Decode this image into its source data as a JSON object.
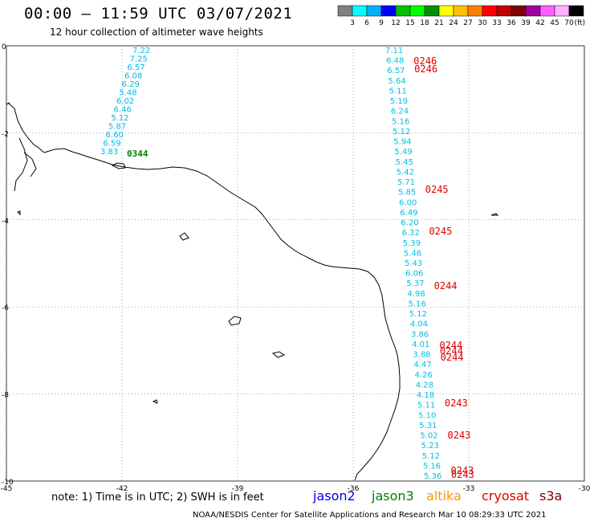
{
  "header": {
    "title": "00:00 – 11:59 UTC 03/07/2021",
    "subtitle": "12 hour collection of altimeter wave heights"
  },
  "colorbar": {
    "colors": [
      "#808080",
      "#00ffff",
      "#00b0ff",
      "#0000ff",
      "#00c000",
      "#00ff00",
      "#009000",
      "#ffff00",
      "#ffc000",
      "#ff8000",
      "#ff0000",
      "#c00000",
      "#800000",
      "#a000a0",
      "#ff60ff",
      "#ffb0ff",
      "#000000"
    ],
    "labels": [
      "3",
      "6",
      "9",
      "12",
      "15",
      "18",
      "21",
      "24",
      "27",
      "30",
      "33",
      "36",
      "39",
      "42",
      "45",
      "70"
    ],
    "unit": "(ft)"
  },
  "axes": {
    "lon_labels": [
      "-45",
      "-42",
      "-39",
      "-36",
      "-33",
      "-30"
    ],
    "lat_labels": [
      "0",
      "-2",
      "-4",
      "-6",
      "-8",
      "-10"
    ],
    "lon_range": [
      -45,
      -30
    ],
    "lat_range": [
      -10,
      0
    ],
    "grid": "dotted"
  },
  "track1": {
    "color": "#00b8e8",
    "values": [
      "7.22",
      "7.25",
      "6.57",
      "6.08",
      "6.29",
      "5.48",
      "6.02",
      "6.46",
      "5.12",
      "5.87",
      "6.60",
      "6.59",
      "3.83"
    ],
    "time_label": "0344",
    "time_color": "#008000"
  },
  "track2": {
    "color": "#00c0e0",
    "values": [
      "7.11",
      "6.48",
      "6.57",
      "5.64",
      "5.11",
      "5.19",
      "6.24",
      "5.16",
      "5.12",
      "5.94",
      "5.49",
      "5.45",
      "5.42",
      "5.71",
      "5.85",
      "6.00",
      "6.49",
      "6.20",
      "6.32",
      "5.39",
      "5.46",
      "5.43",
      "6.06",
      "5.37",
      "4.98",
      "5.16",
      "5.12",
      "4.04",
      "3.86",
      "4.01",
      "3.88",
      "4.47",
      "4.26",
      "4.28",
      "4.18",
      "5.11",
      "5.10",
      "5.31",
      "5.02",
      "5.23",
      "5.12",
      "5.16",
      "5.36"
    ],
    "time_labels": [
      "0246",
      "0246",
      "0245",
      "0245",
      "0244",
      "0244",
      "0244",
      "0244",
      "0243",
      "0243",
      "0243",
      "0243"
    ],
    "time_color": "#e00000"
  },
  "note": "note: 1) Time is in UTC; 2) SWH is in feet",
  "missions": [
    {
      "name": "jason2",
      "color": "#0000e0"
    },
    {
      "name": "jason3",
      "color": "#008000"
    },
    {
      "name": "altika",
      "color": "#ff9900"
    },
    {
      "name": "cryosat",
      "color": "#e00000"
    },
    {
      "name": "s3a",
      "color": "#800000"
    }
  ],
  "footer": "NOAA/NESDIS Center for Satellite Applications and Research   Mar 10 08:29:33 UTC 2021"
}
